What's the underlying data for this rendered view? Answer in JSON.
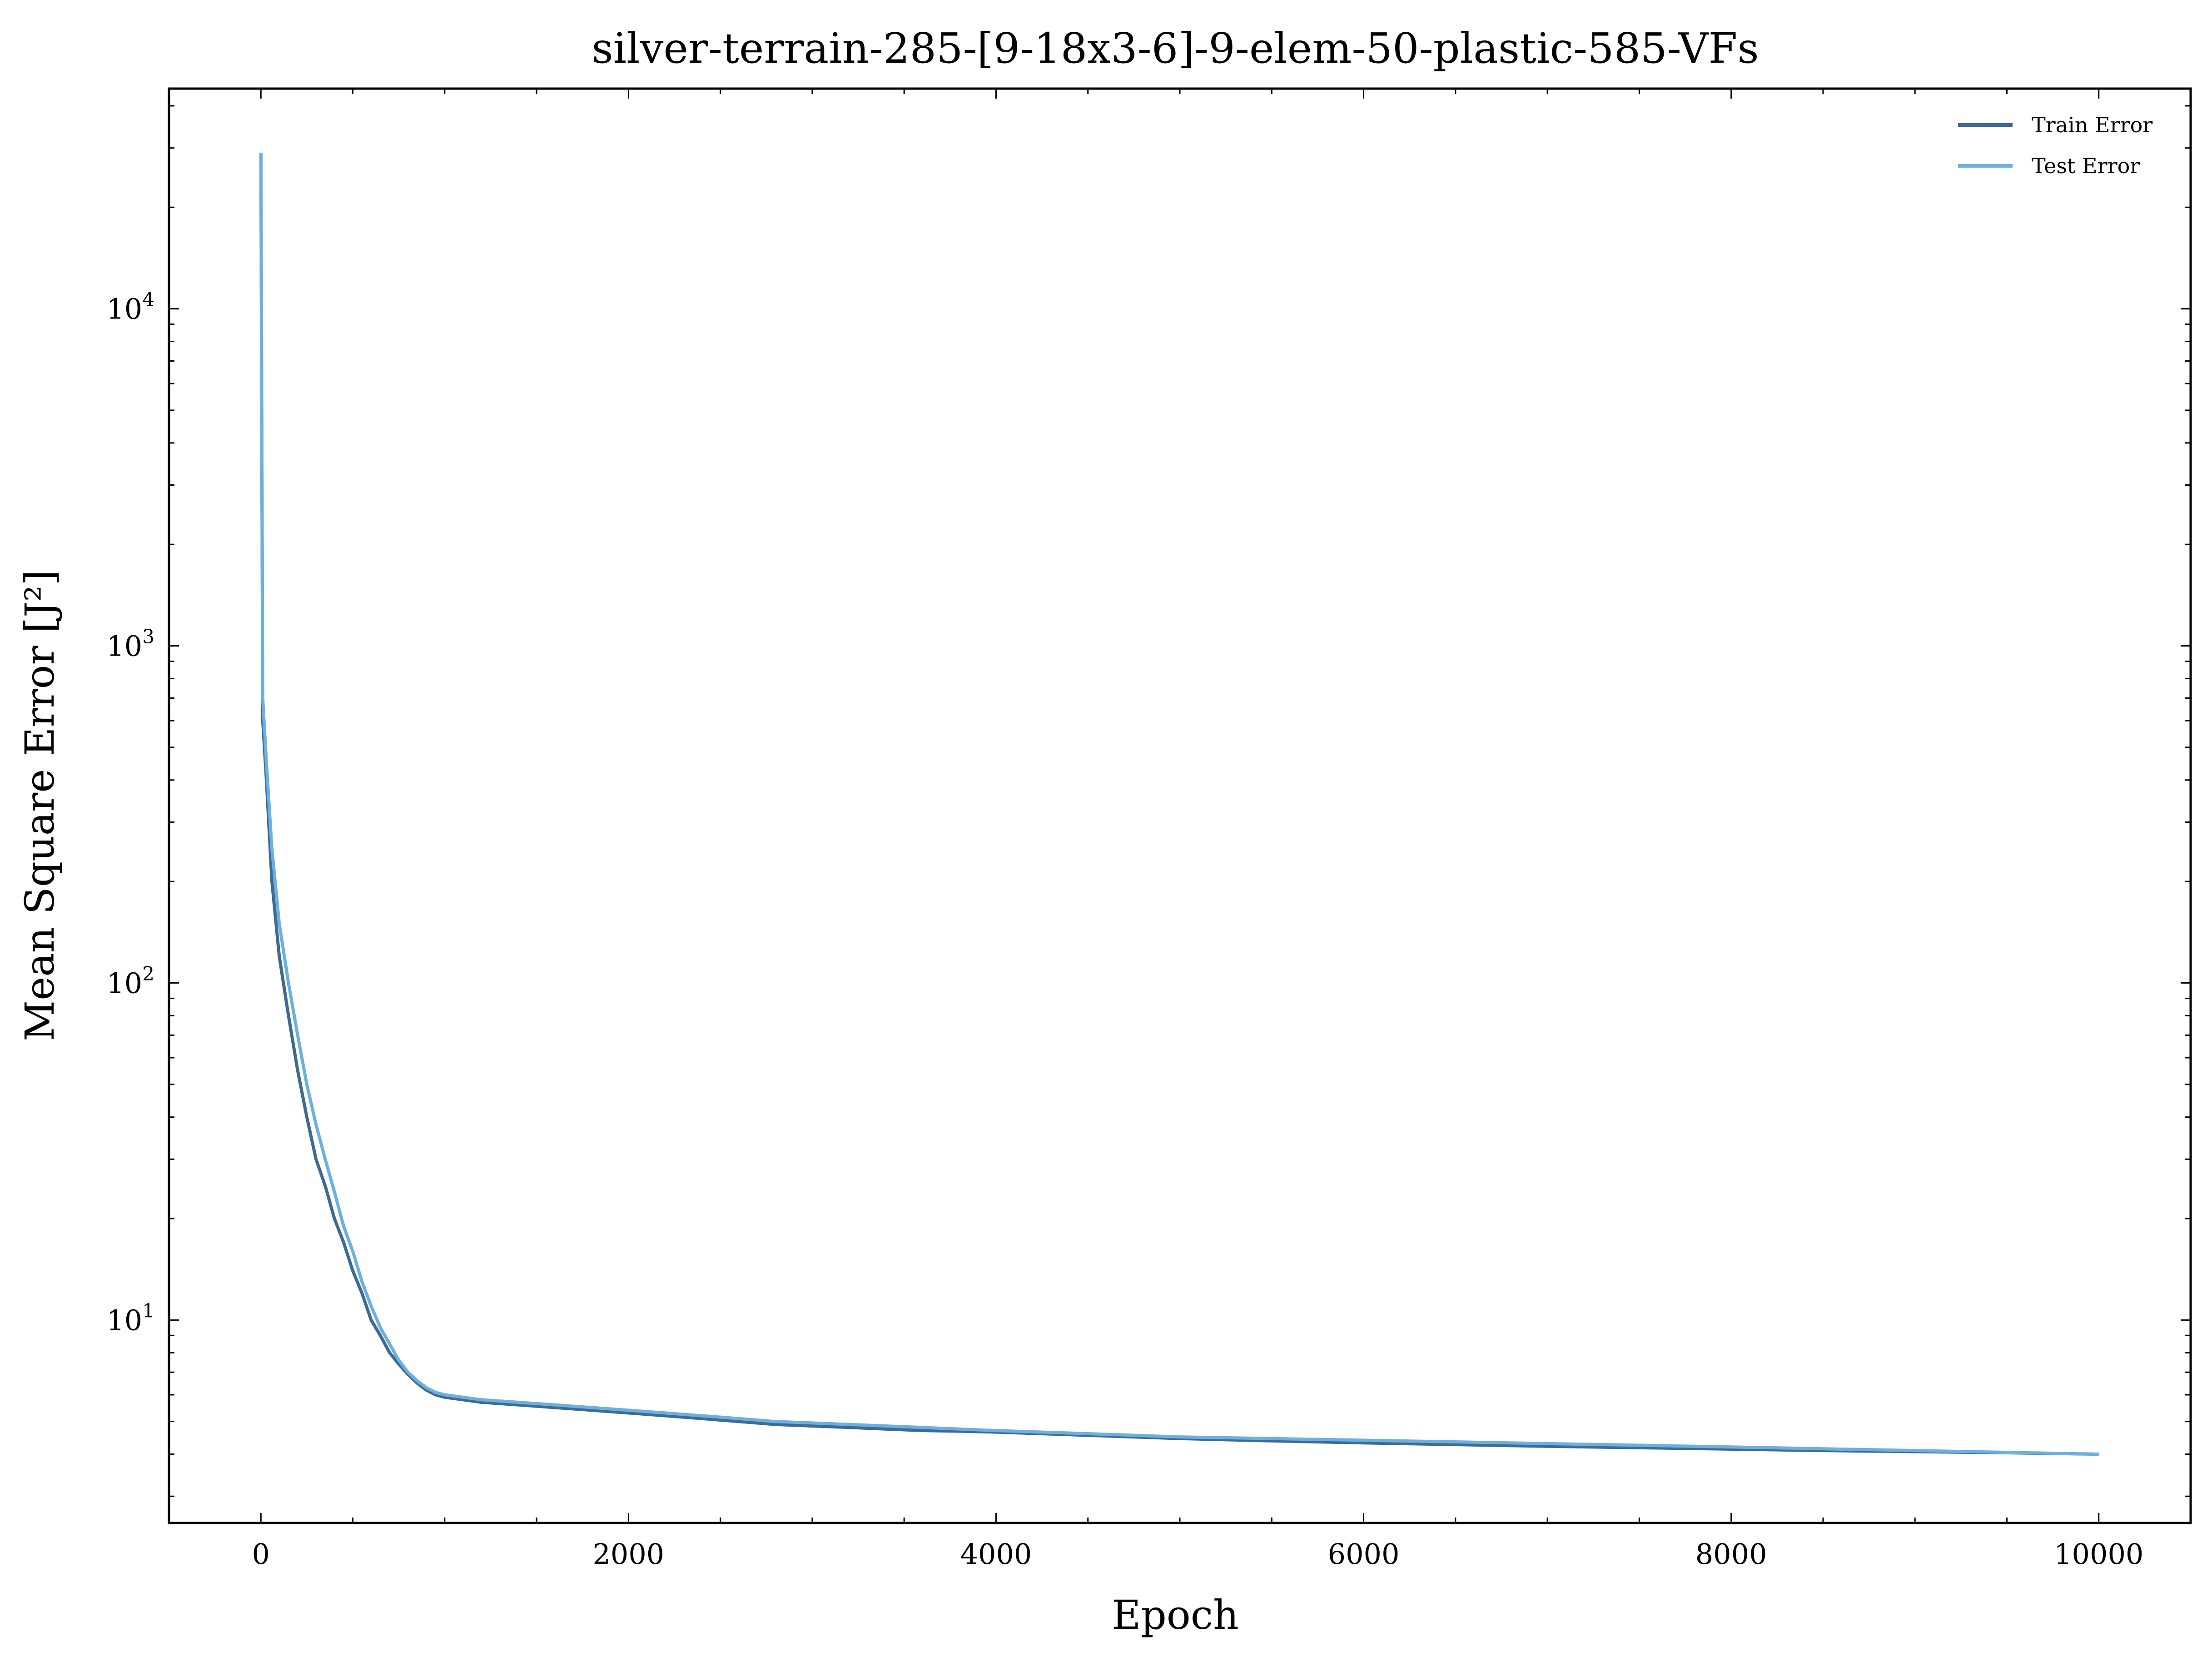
{
  "chart_data": {
    "type": "line",
    "title": "silver-terrain-285-[9-18x3-6]-9-elem-50-plastic-585-VFs",
    "xlabel": "Epoch",
    "ylabel": "Mean Square Error [J²]",
    "xlim": [
      -500,
      10500
    ],
    "ylim": [
      2.5,
      45000
    ],
    "yscale": "log",
    "grid": false,
    "legend_position": "top-right",
    "x_ticks": [
      {
        "value": 0,
        "label": "0"
      },
      {
        "value": 2000,
        "label": "2000"
      },
      {
        "value": 4000,
        "label": "4000"
      },
      {
        "value": 6000,
        "label": "6000"
      },
      {
        "value": 8000,
        "label": "8000"
      },
      {
        "value": 10000,
        "label": "10000"
      }
    ],
    "y_ticks": [
      {
        "value": 10,
        "base": "10",
        "exp": "1"
      },
      {
        "value": 100,
        "base": "10",
        "exp": "2"
      },
      {
        "value": 1000,
        "base": "10",
        "exp": "3"
      },
      {
        "value": 10000,
        "base": "10",
        "exp": "4"
      }
    ],
    "series": [
      {
        "name": "Train Error",
        "color": "#3e6a94",
        "x": [
          0,
          10,
          30,
          60,
          100,
          150,
          200,
          250,
          300,
          350,
          400,
          450,
          500,
          550,
          600,
          650,
          700,
          750,
          800,
          850,
          900,
          950,
          1000,
          1100,
          1200,
          1400,
          1600,
          1800,
          2000,
          2200,
          2400,
          2600,
          2800,
          3000,
          3200,
          3400,
          3600,
          3800,
          4000,
          4500,
          5000,
          5500,
          6000,
          6500,
          7000,
          7500,
          8000,
          8500,
          9000,
          9500,
          10000
        ],
        "y": [
          29000,
          600,
          400,
          200,
          120,
          80,
          55,
          40,
          30,
          25,
          20,
          17,
          14,
          12,
          10,
          9,
          8,
          7.4,
          6.9,
          6.5,
          6.2,
          6.0,
          5.9,
          5.8,
          5.7,
          5.6,
          5.5,
          5.4,
          5.3,
          5.2,
          5.1,
          5.0,
          4.9,
          4.85,
          4.8,
          4.75,
          4.7,
          4.68,
          4.65,
          4.55,
          4.45,
          4.38,
          4.32,
          4.27,
          4.22,
          4.18,
          4.14,
          4.1,
          4.07,
          4.04,
          4.0
        ]
      },
      {
        "name": "Test Error",
        "color": "#6cb0e0",
        "x": [
          0,
          10,
          30,
          60,
          100,
          150,
          200,
          250,
          300,
          350,
          400,
          450,
          500,
          550,
          600,
          650,
          700,
          750,
          800,
          850,
          900,
          950,
          1000,
          1100,
          1200,
          1400,
          1600,
          1800,
          2000,
          2200,
          2400,
          2600,
          2800,
          3000,
          3200,
          3400,
          3600,
          3800,
          4000,
          4500,
          5000,
          5500,
          6000,
          6500,
          7000,
          7500,
          8000,
          8500,
          9000,
          9500,
          10000
        ],
        "y": [
          29000,
          700,
          450,
          250,
          150,
          100,
          70,
          50,
          38,
          30,
          24,
          19,
          16,
          13,
          11,
          9.5,
          8.5,
          7.6,
          7.0,
          6.6,
          6.3,
          6.1,
          6.0,
          5.9,
          5.8,
          5.7,
          5.6,
          5.5,
          5.4,
          5.3,
          5.2,
          5.1,
          5.0,
          4.95,
          4.9,
          4.85,
          4.8,
          4.75,
          4.7,
          4.6,
          4.5,
          4.45,
          4.4,
          4.35,
          4.3,
          4.25,
          4.2,
          4.15,
          4.1,
          4.05,
          4.0
        ]
      }
    ]
  }
}
